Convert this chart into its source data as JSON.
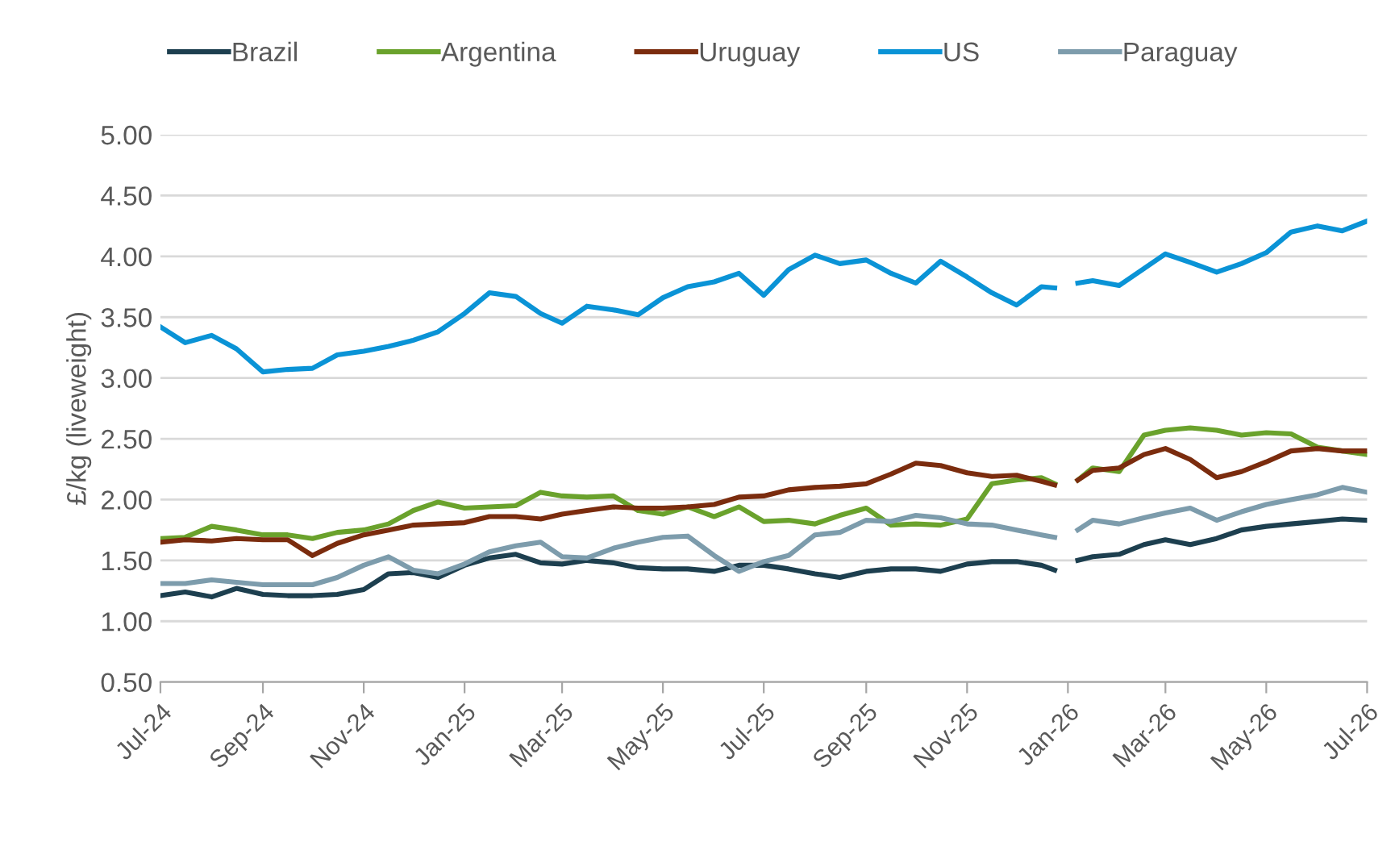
{
  "chart_data": {
    "type": "line",
    "ylabel": "£/kg (liveweight)",
    "x": [
      "2024-07-01",
      "2024-07-16",
      "2024-08-01",
      "2024-08-16",
      "2024-09-01",
      "2024-09-16",
      "2024-10-01",
      "2024-10-16",
      "2024-11-01",
      "2024-11-16",
      "2024-12-01",
      "2024-12-16",
      "2025-01-01",
      "2025-01-16",
      "2025-02-01",
      "2025-02-16",
      "2025-03-01",
      "2025-03-16",
      "2025-04-01",
      "2025-04-16",
      "2025-05-01",
      "2025-05-16",
      "2025-06-01",
      "2025-06-16",
      "2025-07-01",
      "2025-07-16",
      "2025-08-01",
      "2025-08-16",
      "2025-09-01",
      "2025-09-16",
      "2025-10-01",
      "2025-10-16",
      "2025-11-01",
      "2025-11-16",
      "2025-12-01",
      "2025-12-16",
      "2025-12-24",
      "2026-01-01",
      "2026-01-07",
      "2026-01-16",
      "2026-02-01",
      "2026-02-16",
      "2026-03-01",
      "2026-03-16",
      "2026-04-01",
      "2026-04-16",
      "2026-05-01",
      "2026-05-16",
      "2026-06-01",
      "2026-06-16",
      "2026-07-01"
    ],
    "series": [
      {
        "name": "Brazil",
        "color": "#1d3f4f",
        "values": [
          1.21,
          1.24,
          1.2,
          1.27,
          1.22,
          1.21,
          1.21,
          1.22,
          1.26,
          1.39,
          1.4,
          1.36,
          1.46,
          1.52,
          1.55,
          1.48,
          1.47,
          1.5,
          1.48,
          1.44,
          1.43,
          1.43,
          1.41,
          1.46,
          1.46,
          1.43,
          1.39,
          1.36,
          1.41,
          1.43,
          1.43,
          1.41,
          1.47,
          1.49,
          1.49,
          1.46,
          1.42,
          null,
          1.5,
          1.53,
          1.55,
          1.63,
          1.67,
          1.63,
          1.68,
          1.75,
          1.78,
          1.8,
          1.82,
          1.84,
          1.83
        ]
      },
      {
        "name": "Argentina",
        "color": "#6aa22c",
        "values": [
          1.68,
          1.69,
          1.78,
          1.75,
          1.71,
          1.71,
          1.68,
          1.73,
          1.75,
          1.8,
          1.91,
          1.98,
          1.93,
          1.94,
          1.95,
          2.06,
          2.03,
          2.02,
          2.03,
          1.91,
          1.88,
          1.94,
          1.86,
          1.94,
          1.82,
          1.83,
          1.8,
          1.87,
          1.93,
          1.79,
          1.8,
          1.79,
          1.84,
          2.13,
          2.16,
          2.18,
          2.13,
          null,
          2.16,
          2.26,
          2.23,
          2.53,
          2.57,
          2.59,
          2.57,
          2.53,
          2.55,
          2.54,
          2.43,
          2.4,
          2.37
        ]
      },
      {
        "name": "Uruguay",
        "color": "#7b2c0e",
        "values": [
          1.65,
          1.67,
          1.66,
          1.68,
          1.67,
          1.67,
          1.54,
          1.64,
          1.71,
          1.75,
          1.79,
          1.8,
          1.81,
          1.86,
          1.86,
          1.84,
          1.88,
          1.91,
          1.94,
          1.93,
          1.93,
          1.94,
          1.96,
          2.02,
          2.03,
          2.08,
          2.1,
          2.11,
          2.13,
          2.21,
          2.3,
          2.28,
          2.22,
          2.19,
          2.2,
          2.15,
          2.12,
          null,
          2.16,
          2.24,
          2.26,
          2.37,
          2.42,
          2.33,
          2.18,
          2.23,
          2.31,
          2.4,
          2.42,
          2.4,
          2.4
        ]
      },
      {
        "name": "US",
        "color": "#0a93d6",
        "values": [
          3.42,
          3.29,
          3.35,
          3.24,
          3.05,
          3.07,
          3.08,
          3.19,
          3.22,
          3.26,
          3.31,
          3.38,
          3.53,
          3.7,
          3.67,
          3.53,
          3.45,
          3.59,
          3.56,
          3.52,
          3.66,
          3.75,
          3.79,
          3.86,
          3.68,
          3.89,
          4.01,
          3.94,
          3.97,
          3.86,
          3.78,
          3.96,
          3.83,
          3.7,
          3.6,
          3.75,
          3.74,
          null,
          3.78,
          3.8,
          3.76,
          3.9,
          4.02,
          3.95,
          3.87,
          3.94,
          4.03,
          4.2,
          4.25,
          4.21,
          4.29
        ]
      },
      {
        "name": "Paraguay",
        "color": "#7d9cac",
        "values": [
          1.31,
          1.31,
          1.34,
          1.32,
          1.3,
          1.3,
          1.3,
          1.36,
          1.46,
          1.53,
          1.42,
          1.39,
          1.47,
          1.57,
          1.62,
          1.65,
          1.53,
          1.52,
          1.6,
          1.65,
          1.69,
          1.7,
          1.54,
          1.41,
          1.49,
          1.54,
          1.71,
          1.73,
          1.83,
          1.82,
          1.87,
          1.85,
          1.8,
          1.79,
          1.75,
          1.71,
          1.69,
          null,
          1.75,
          1.83,
          1.8,
          1.85,
          1.89,
          1.93,
          1.83,
          1.9,
          1.96,
          2.0,
          2.04,
          2.1,
          2.06
        ]
      }
    ],
    "xlim": [
      "2024-07-01",
      "2026-07-01"
    ],
    "xticks": [
      {
        "value": "2024-07-01",
        "label": "Jul-24"
      },
      {
        "value": "2024-09-01",
        "label": "Sep-24"
      },
      {
        "value": "2024-11-01",
        "label": "Nov-24"
      },
      {
        "value": "2025-01-01",
        "label": "Jan-25"
      },
      {
        "value": "2025-03-01",
        "label": "Mar-25"
      },
      {
        "value": "2025-05-01",
        "label": "May-25"
      },
      {
        "value": "2025-07-01",
        "label": "Jul-25"
      },
      {
        "value": "2025-09-01",
        "label": "Sep-25"
      },
      {
        "value": "2025-11-01",
        "label": "Nov-25"
      },
      {
        "value": "2026-01-01",
        "label": "Jan-26"
      },
      {
        "value": "2026-03-01",
        "label": "Mar-26"
      },
      {
        "value": "2026-05-01",
        "label": "May-26"
      },
      {
        "value": "2026-07-01",
        "label": "Jul-26"
      }
    ],
    "ylim": [
      0.5,
      5.0
    ],
    "yticks": [
      {
        "value": 0.5,
        "label": "0.50"
      },
      {
        "value": 1.0,
        "label": "1.00"
      },
      {
        "value": 1.5,
        "label": "1.50"
      },
      {
        "value": 2.0,
        "label": "2.00"
      },
      {
        "value": 2.5,
        "label": "2.50"
      },
      {
        "value": 3.0,
        "label": "3.00"
      },
      {
        "value": 3.5,
        "label": "3.50"
      },
      {
        "value": 4.0,
        "label": "4.00"
      },
      {
        "value": 4.5,
        "label": "4.50"
      },
      {
        "value": 5.0,
        "label": "5.00"
      }
    ],
    "grid": "y",
    "legend": "top",
    "line_style": "solid"
  }
}
